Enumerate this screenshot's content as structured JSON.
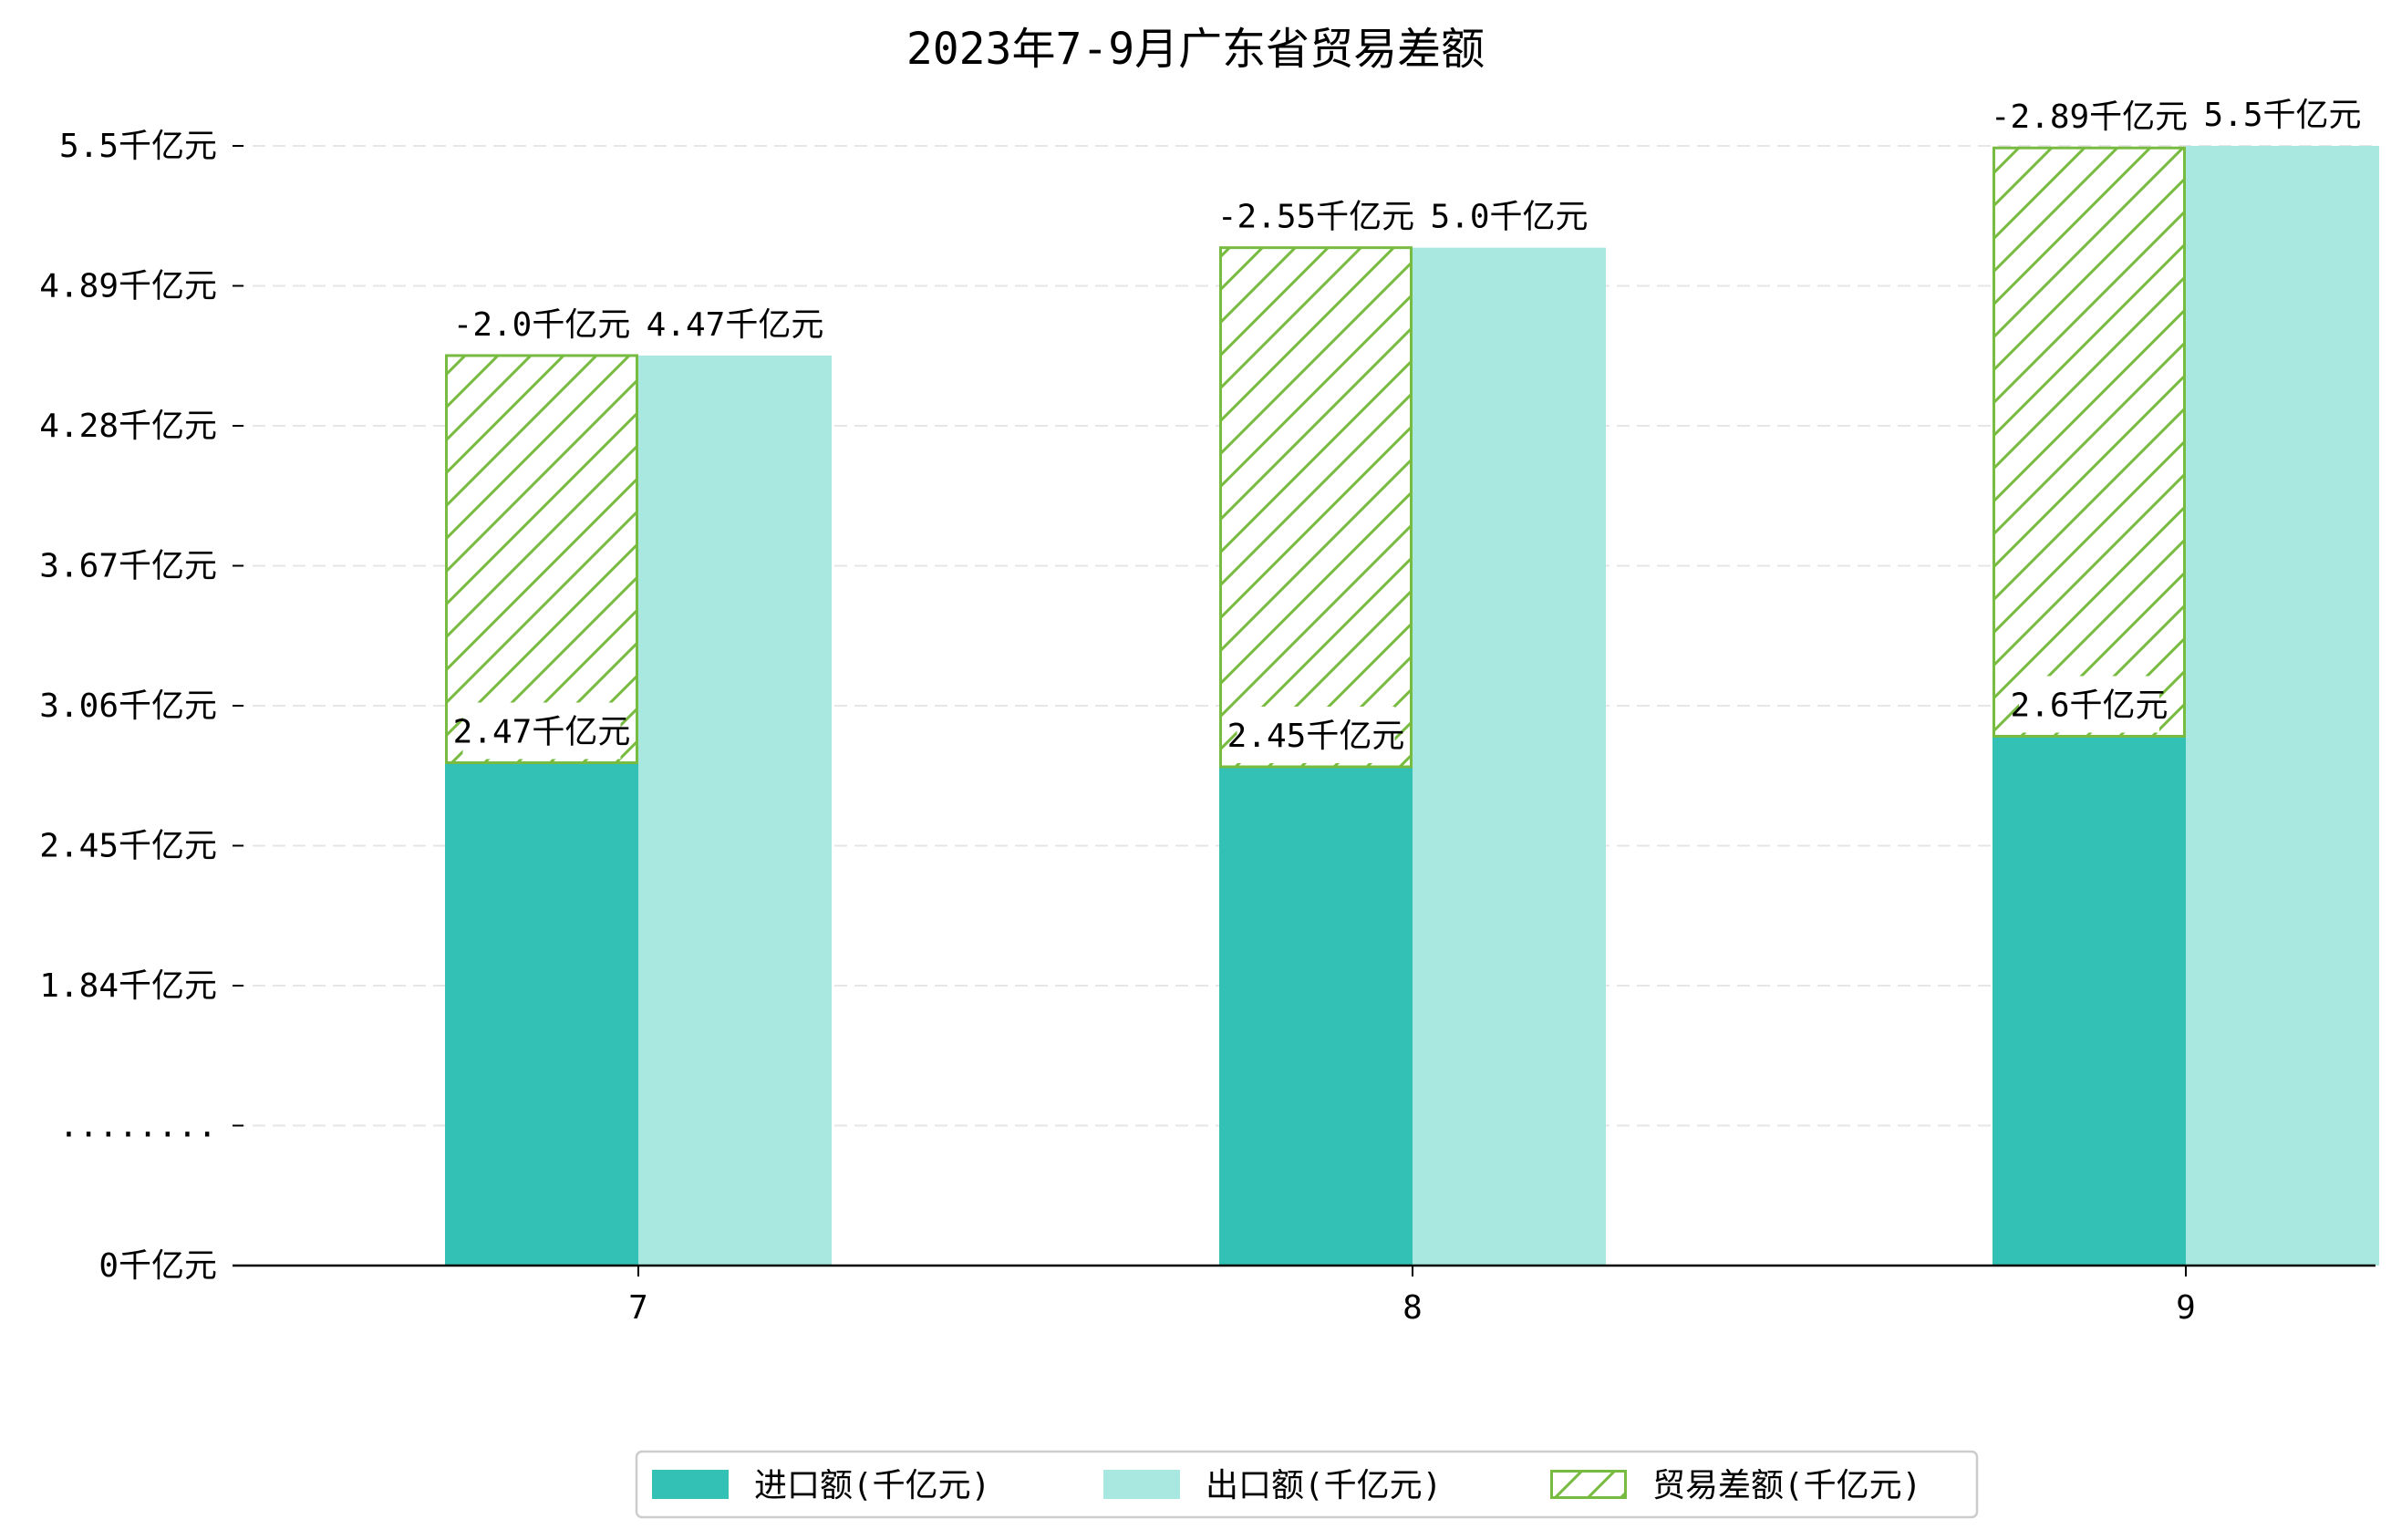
{
  "chart_data": {
    "type": "bar",
    "title": "2023年7-9月广东省贸易差额",
    "categories": [
      "7",
      "8",
      "9"
    ],
    "series": [
      {
        "name": "进口额(千亿元)",
        "values": [
          2.47,
          2.45,
          2.6
        ],
        "labels": [
          "2.47千亿元",
          "2.45千亿元",
          "2.6千亿元"
        ],
        "color": "#32c1b4"
      },
      {
        "name": "出口额(千亿元)",
        "values": [
          4.47,
          5.0,
          5.5
        ],
        "labels": [
          "4.47千亿元",
          "5.0千亿元",
          "5.5千亿元"
        ],
        "color": "#a9e7e1"
      },
      {
        "name": "贸易差额(千亿元)",
        "values": [
          -2.0,
          -2.55,
          -2.89
        ],
        "labels": [
          "-2.0千亿元",
          "-2.55千亿元",
          "-2.89千亿元"
        ],
        "color": "#77bb41",
        "hatch": true
      }
    ],
    "y_ticks": [
      {
        "label": "0千亿元"
      },
      {
        "label": "........"
      },
      {
        "label": "1.84千亿元"
      },
      {
        "label": "2.45千亿元"
      },
      {
        "label": "3.06千亿元"
      },
      {
        "label": "3.67千亿元"
      },
      {
        "label": "4.28千亿元"
      },
      {
        "label": "4.89千亿元"
      },
      {
        "label": "5.5千亿元"
      }
    ],
    "grid": true,
    "legend_position": "bottom"
  }
}
